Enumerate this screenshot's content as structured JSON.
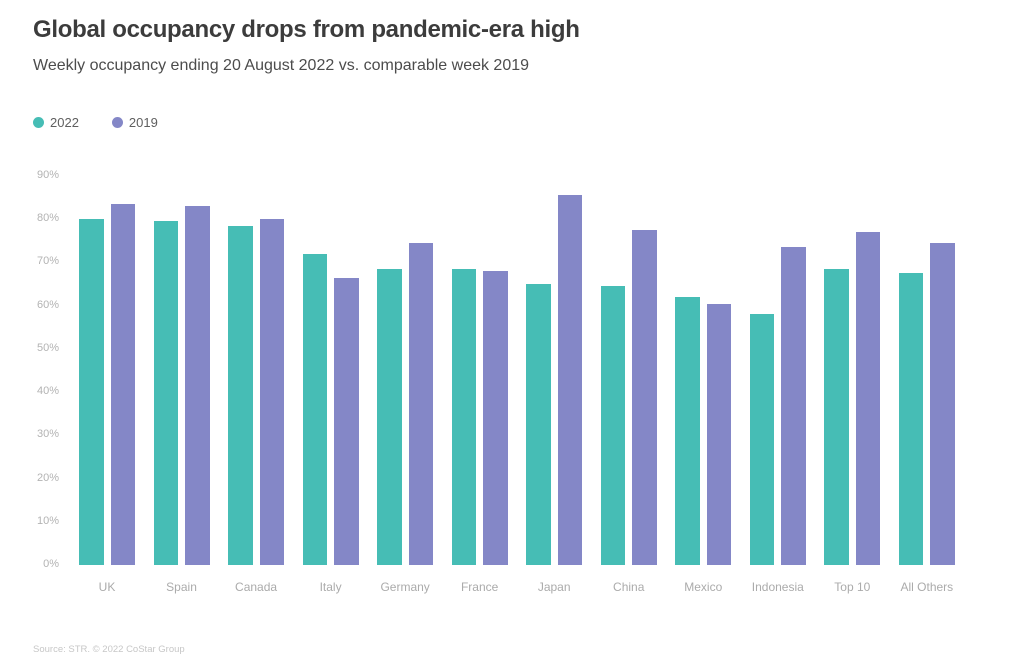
{
  "header": {
    "title": "Global occupancy drops from pandemic-era high",
    "subtitle": "Weekly occupancy ending 20 August 2022 vs. comparable week 2019"
  },
  "footer": {
    "source": "Source: STR. © 2022 CoStar Group"
  },
  "colors": {
    "series_2022": "#46bdb5",
    "series_2019": "#8487c7",
    "title_text": "#3c3c3c",
    "axis_text": "#b3b3b3",
    "background": "#ffffff"
  },
  "chart_data": {
    "type": "bar",
    "title": "Global occupancy drops from pandemic-era high",
    "subtitle": "Weekly occupancy ending 20 August 2022 vs. comparable week 2019",
    "categories": [
      "UK",
      "Spain",
      "Canada",
      "Italy",
      "Germany",
      "France",
      "Japan",
      "China",
      "Mexico",
      "Indonesia",
      "Top 10",
      "All Others"
    ],
    "series": [
      {
        "name": "2022",
        "color": "#46bdb5",
        "values": [
          80,
          79.5,
          78.5,
          72,
          68.5,
          68.5,
          65,
          64.5,
          62,
          58,
          68.5,
          67.5
        ]
      },
      {
        "name": "2019",
        "color": "#8487c7",
        "values": [
          83.5,
          83,
          80,
          66.5,
          74.5,
          68,
          85.5,
          77.5,
          60.5,
          73.5,
          77,
          74.5
        ]
      }
    ],
    "xlabel": "",
    "ylabel": "",
    "ylim": [
      0,
      90
    ],
    "yticks": [
      0,
      10,
      20,
      30,
      40,
      50,
      60,
      70,
      80,
      90
    ],
    "ytick_suffix": "%",
    "grid": false,
    "legend_position": "top-left"
  }
}
